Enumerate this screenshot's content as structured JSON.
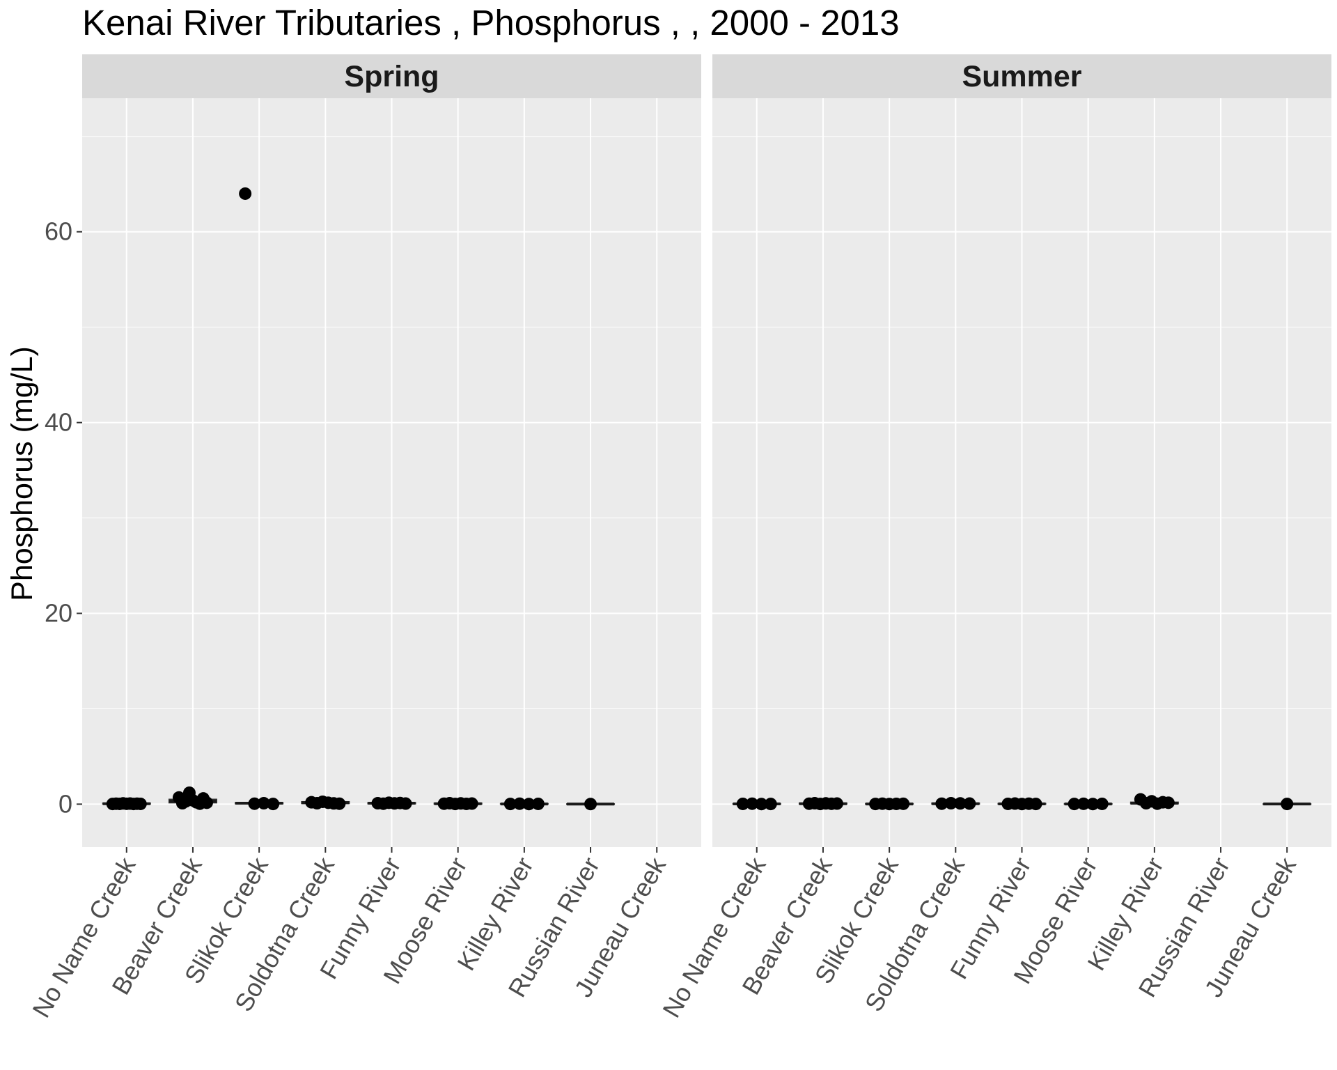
{
  "chart_data": {
    "type": "boxplot",
    "title": "Kenai River Tributaries , Phosphorus ,  , 2000 - 2013",
    "xlabel": "",
    "ylabel": "Phosphorus (mg/L)",
    "ylim": [
      -4.5,
      74
    ],
    "yticks": [
      0,
      20,
      40,
      60
    ],
    "grid": true,
    "categories": [
      "No Name Creek",
      "Beaver Creek",
      "Slikok Creek",
      "Soldotna Creek",
      "Funny River",
      "Moose River",
      "Killey River",
      "Russian River",
      "Juneau Creek"
    ],
    "panels": [
      {
        "name": "Spring",
        "series": [
          {
            "category": "No Name Creek",
            "median": 0.05,
            "q1": 0.02,
            "q3": 0.1,
            "points": [
              0.02,
              0.05,
              0.03,
              0.08,
              0.04,
              0.06,
              0.02,
              0.05,
              0.03
            ]
          },
          {
            "category": "Beaver Creek",
            "median": 0.3,
            "q1": 0.15,
            "q3": 0.5,
            "points": [
              0.7,
              0.1,
              0.3,
              1.2,
              0.4,
              0.2,
              0.05,
              0.6,
              0.15
            ]
          },
          {
            "category": "Slikok Creek",
            "median": 0.1,
            "q1": 0.05,
            "q3": 0.15,
            "points": [
              64,
              0.05,
              0.1,
              0.02
            ]
          },
          {
            "category": "Soldotna Creek",
            "median": 0.15,
            "q1": 0.08,
            "q3": 0.25,
            "points": [
              0.2,
              0.1,
              0.25,
              0.15,
              0.08,
              0.05
            ]
          },
          {
            "category": "Funny River",
            "median": 0.1,
            "q1": 0.05,
            "q3": 0.15,
            "points": [
              0.1,
              0.05,
              0.15,
              0.08,
              0.12,
              0.06
            ]
          },
          {
            "category": "Moose River",
            "median": 0.05,
            "q1": 0.02,
            "q3": 0.1,
            "points": [
              0.05,
              0.1,
              0.02,
              0.08,
              0.03,
              0.06
            ]
          },
          {
            "category": "Killey River",
            "median": 0.02,
            "q1": 0.01,
            "q3": 0.05,
            "points": [
              0.02,
              0.05,
              0.01,
              0.03
            ]
          },
          {
            "category": "Russian River",
            "median": 0.01,
            "q1": 0.01,
            "q3": 0.02,
            "points": [
              0.01
            ]
          },
          {
            "category": "Juneau Creek",
            "median": null,
            "q1": null,
            "q3": null,
            "points": []
          }
        ]
      },
      {
        "name": "Summer",
        "series": [
          {
            "category": "No Name Creek",
            "median": 0.03,
            "q1": 0.01,
            "q3": 0.05,
            "points": [
              0.03,
              0.05,
              0.01,
              0.02
            ]
          },
          {
            "category": "Beaver Creek",
            "median": 0.05,
            "q1": 0.02,
            "q3": 0.1,
            "points": [
              0.05,
              0.1,
              0.02,
              0.08,
              0.04,
              0.06
            ]
          },
          {
            "category": "Slikok Creek",
            "median": 0.02,
            "q1": 0.01,
            "q3": 0.05,
            "points": [
              0.02,
              0.05,
              0.01,
              0.03,
              0.04
            ]
          },
          {
            "category": "Soldotna Creek",
            "median": 0.05,
            "q1": 0.02,
            "q3": 0.1,
            "points": [
              0.05,
              0.1,
              0.08,
              0.06
            ]
          },
          {
            "category": "Funny River",
            "median": 0.03,
            "q1": 0.01,
            "q3": 0.06,
            "points": [
              0.03,
              0.06,
              0.01,
              0.05,
              0.02
            ]
          },
          {
            "category": "Moose River",
            "median": 0.02,
            "q1": 0.01,
            "q3": 0.04,
            "points": [
              0.02,
              0.04,
              0.01,
              0.03
            ]
          },
          {
            "category": "Killey River",
            "median": 0.1,
            "q1": 0.05,
            "q3": 0.2,
            "points": [
              0.5,
              0.1,
              0.3,
              0.05,
              0.2,
              0.15
            ]
          },
          {
            "category": "Russian River",
            "median": null,
            "q1": null,
            "q3": null,
            "points": []
          },
          {
            "category": "Juneau Creek",
            "median": 0.02,
            "q1": 0.02,
            "q3": 0.02,
            "points": [
              0.02
            ]
          }
        ]
      }
    ]
  }
}
